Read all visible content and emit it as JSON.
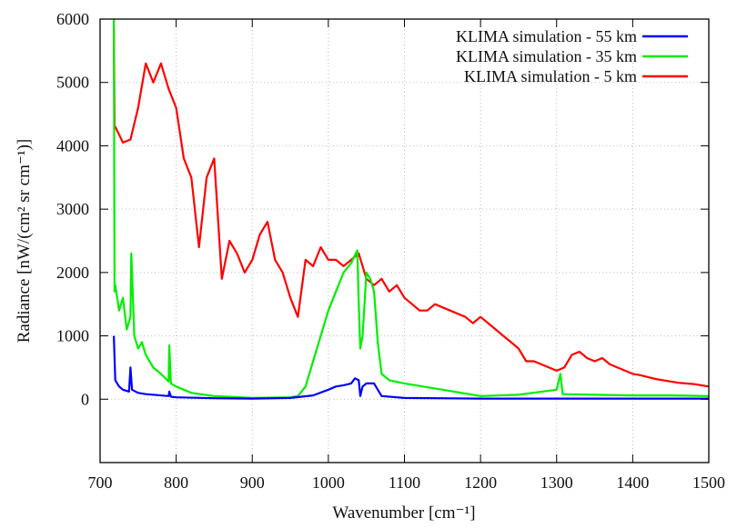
{
  "chart_data": {
    "type": "line",
    "title": "",
    "xlabel": "Wavenumber [cm⁻¹]",
    "ylabel": "Radiance [nW/(cm² sr cm⁻¹)]",
    "xlim": [
      700,
      1500
    ],
    "ylim": [
      -1000,
      6000
    ],
    "xticks": [
      700,
      800,
      900,
      1000,
      1100,
      1200,
      1300,
      1400,
      1500
    ],
    "yticks": [
      0,
      1000,
      2000,
      3000,
      4000,
      5000,
      6000
    ],
    "grid": true,
    "legend_position": "top-right",
    "series": [
      {
        "name": "KLIMA simulation - 55 km",
        "color": "#0000ff",
        "x": [
          718,
          720,
          725,
          730,
          738,
          740,
          742,
          750,
          760,
          790,
          791,
          793,
          800,
          850,
          900,
          950,
          980,
          1000,
          1010,
          1020,
          1030,
          1035,
          1040,
          1042,
          1045,
          1050,
          1060,
          1065,
          1070,
          1100,
          1200,
          1300,
          1400,
          1500
        ],
        "y": [
          1000,
          300,
          200,
          150,
          120,
          500,
          150,
          100,
          80,
          50,
          120,
          40,
          30,
          15,
          10,
          20,
          60,
          150,
          200,
          220,
          250,
          330,
          300,
          50,
          200,
          250,
          250,
          150,
          50,
          20,
          10,
          10,
          10,
          10
        ]
      },
      {
        "name": "KLIMA simulation - 35 km",
        "color": "#00ee00",
        "x": [
          718,
          719,
          720,
          725,
          730,
          735,
          740,
          741,
          745,
          750,
          755,
          760,
          770,
          780,
          790,
          791,
          793,
          800,
          820,
          850,
          900,
          950,
          960,
          970,
          980,
          990,
          1000,
          1010,
          1020,
          1030,
          1038,
          1040,
          1042,
          1045,
          1050,
          1055,
          1060,
          1065,
          1070,
          1080,
          1100,
          1150,
          1200,
          1250,
          1300,
          1305,
          1308,
          1350,
          1400,
          1450,
          1500
        ],
        "y": [
          6000,
          1700,
          1800,
          1400,
          1600,
          1100,
          1300,
          2300,
          1000,
          800,
          900,
          700,
          500,
          400,
          280,
          850,
          250,
          200,
          100,
          50,
          20,
          30,
          50,
          200,
          600,
          1000,
          1400,
          1700,
          2000,
          2150,
          2350,
          1500,
          800,
          1000,
          2000,
          1900,
          1700,
          900,
          400,
          300,
          250,
          150,
          50,
          70,
          150,
          400,
          80,
          70,
          60,
          60,
          50
        ]
      },
      {
        "name": "KLIMA simulation - 5 km",
        "color": "#ff0000",
        "x": [
          718,
          719,
          720,
          730,
          740,
          750,
          760,
          770,
          780,
          790,
          800,
          810,
          820,
          830,
          840,
          850,
          860,
          870,
          880,
          890,
          900,
          910,
          920,
          930,
          940,
          950,
          960,
          970,
          980,
          990,
          1000,
          1010,
          1020,
          1030,
          1040,
          1050,
          1060,
          1070,
          1080,
          1090,
          1100,
          1110,
          1120,
          1130,
          1140,
          1150,
          1160,
          1170,
          1180,
          1190,
          1200,
          1210,
          1220,
          1230,
          1240,
          1250,
          1260,
          1270,
          1280,
          1290,
          1300,
          1310,
          1320,
          1330,
          1340,
          1350,
          1360,
          1370,
          1380,
          1390,
          1400,
          1410,
          1420,
          1430,
          1440,
          1450,
          1460,
          1470,
          1480,
          1490,
          1500
        ],
        "y": [
          5900,
          4300,
          4300,
          4050,
          4100,
          4600,
          5300,
          5000,
          5300,
          4900,
          4600,
          3800,
          3500,
          2400,
          3500,
          3800,
          1900,
          2500,
          2300,
          2000,
          2200,
          2600,
          2800,
          2200,
          2000,
          1600,
          1300,
          2200,
          2100,
          2400,
          2200,
          2200,
          2100,
          2200,
          2300,
          1900,
          1800,
          1900,
          1700,
          1800,
          1600,
          1500,
          1400,
          1400,
          1500,
          1450,
          1400,
          1350,
          1300,
          1200,
          1300,
          1200,
          1100,
          1000,
          900,
          800,
          600,
          600,
          550,
          500,
          450,
          500,
          700,
          750,
          650,
          600,
          650,
          550,
          500,
          450,
          400,
          380,
          350,
          320,
          300,
          280,
          260,
          250,
          240,
          220,
          200
        ]
      }
    ]
  }
}
